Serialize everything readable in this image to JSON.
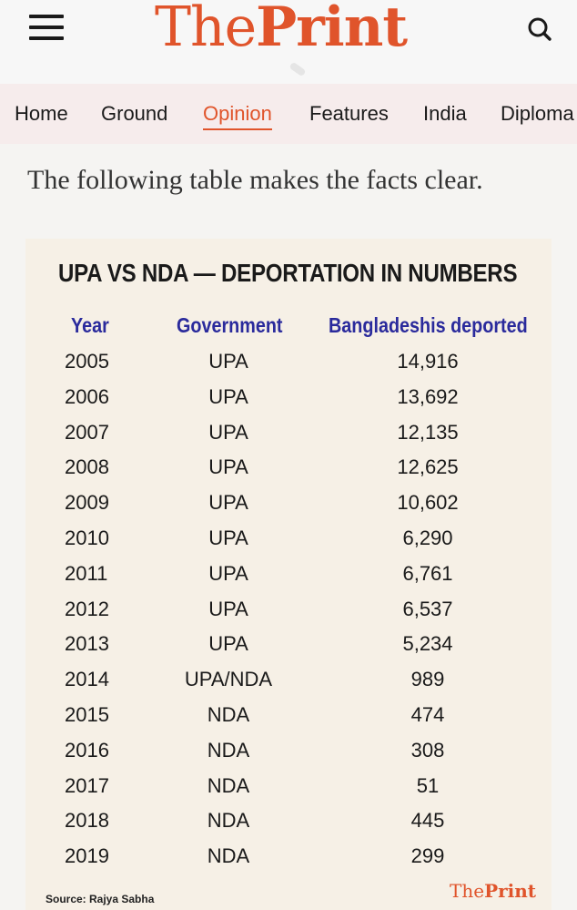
{
  "header": {
    "logo_part1": "The",
    "logo_part2": "Print"
  },
  "nav": {
    "items": [
      "Home",
      "Ground",
      "Opinion",
      "Features",
      "India",
      "Diploma"
    ],
    "active": "Opinion"
  },
  "article": {
    "intro": "The following table makes the facts clear."
  },
  "table_card": {
    "title": "UPA VS NDA — DEPORTATION IN NUMBERS",
    "columns": [
      "Year",
      "Government",
      "Bangladeshis deported"
    ],
    "rows": [
      {
        "year": "2005",
        "government": "UPA",
        "deported": "14,916"
      },
      {
        "year": "2006",
        "government": "UPA",
        "deported": "13,692"
      },
      {
        "year": "2007",
        "government": "UPA",
        "deported": "12,135"
      },
      {
        "year": "2008",
        "government": "UPA",
        "deported": "12,625"
      },
      {
        "year": "2009",
        "government": "UPA",
        "deported": "10,602"
      },
      {
        "year": "2010",
        "government": "UPA",
        "deported": "6,290"
      },
      {
        "year": "2011",
        "government": "UPA",
        "deported": "6,761"
      },
      {
        "year": "2012",
        "government": "UPA",
        "deported": "6,537"
      },
      {
        "year": "2013",
        "government": "UPA",
        "deported": "5,234"
      },
      {
        "year": "2014",
        "government": "UPA/NDA",
        "deported": "989"
      },
      {
        "year": "2015",
        "government": "NDA",
        "deported": "474"
      },
      {
        "year": "2016",
        "government": "NDA",
        "deported": "308"
      },
      {
        "year": "2017",
        "government": "NDA",
        "deported": "51"
      },
      {
        "year": "2018",
        "government": "NDA",
        "deported": "445"
      },
      {
        "year": "2019",
        "government": "NDA",
        "deported": "299"
      }
    ],
    "source": "Source: Rajya Sabha",
    "logo_part1": "The",
    "logo_part2": "Print"
  },
  "colors": {
    "brand": "#e0542b",
    "column_header": "#2a2a9c",
    "card_background": "#f6f0e6",
    "nav_background": "#f6ecec"
  },
  "icons": {
    "menu": "hamburger-menu-icon",
    "search": "search-icon"
  }
}
